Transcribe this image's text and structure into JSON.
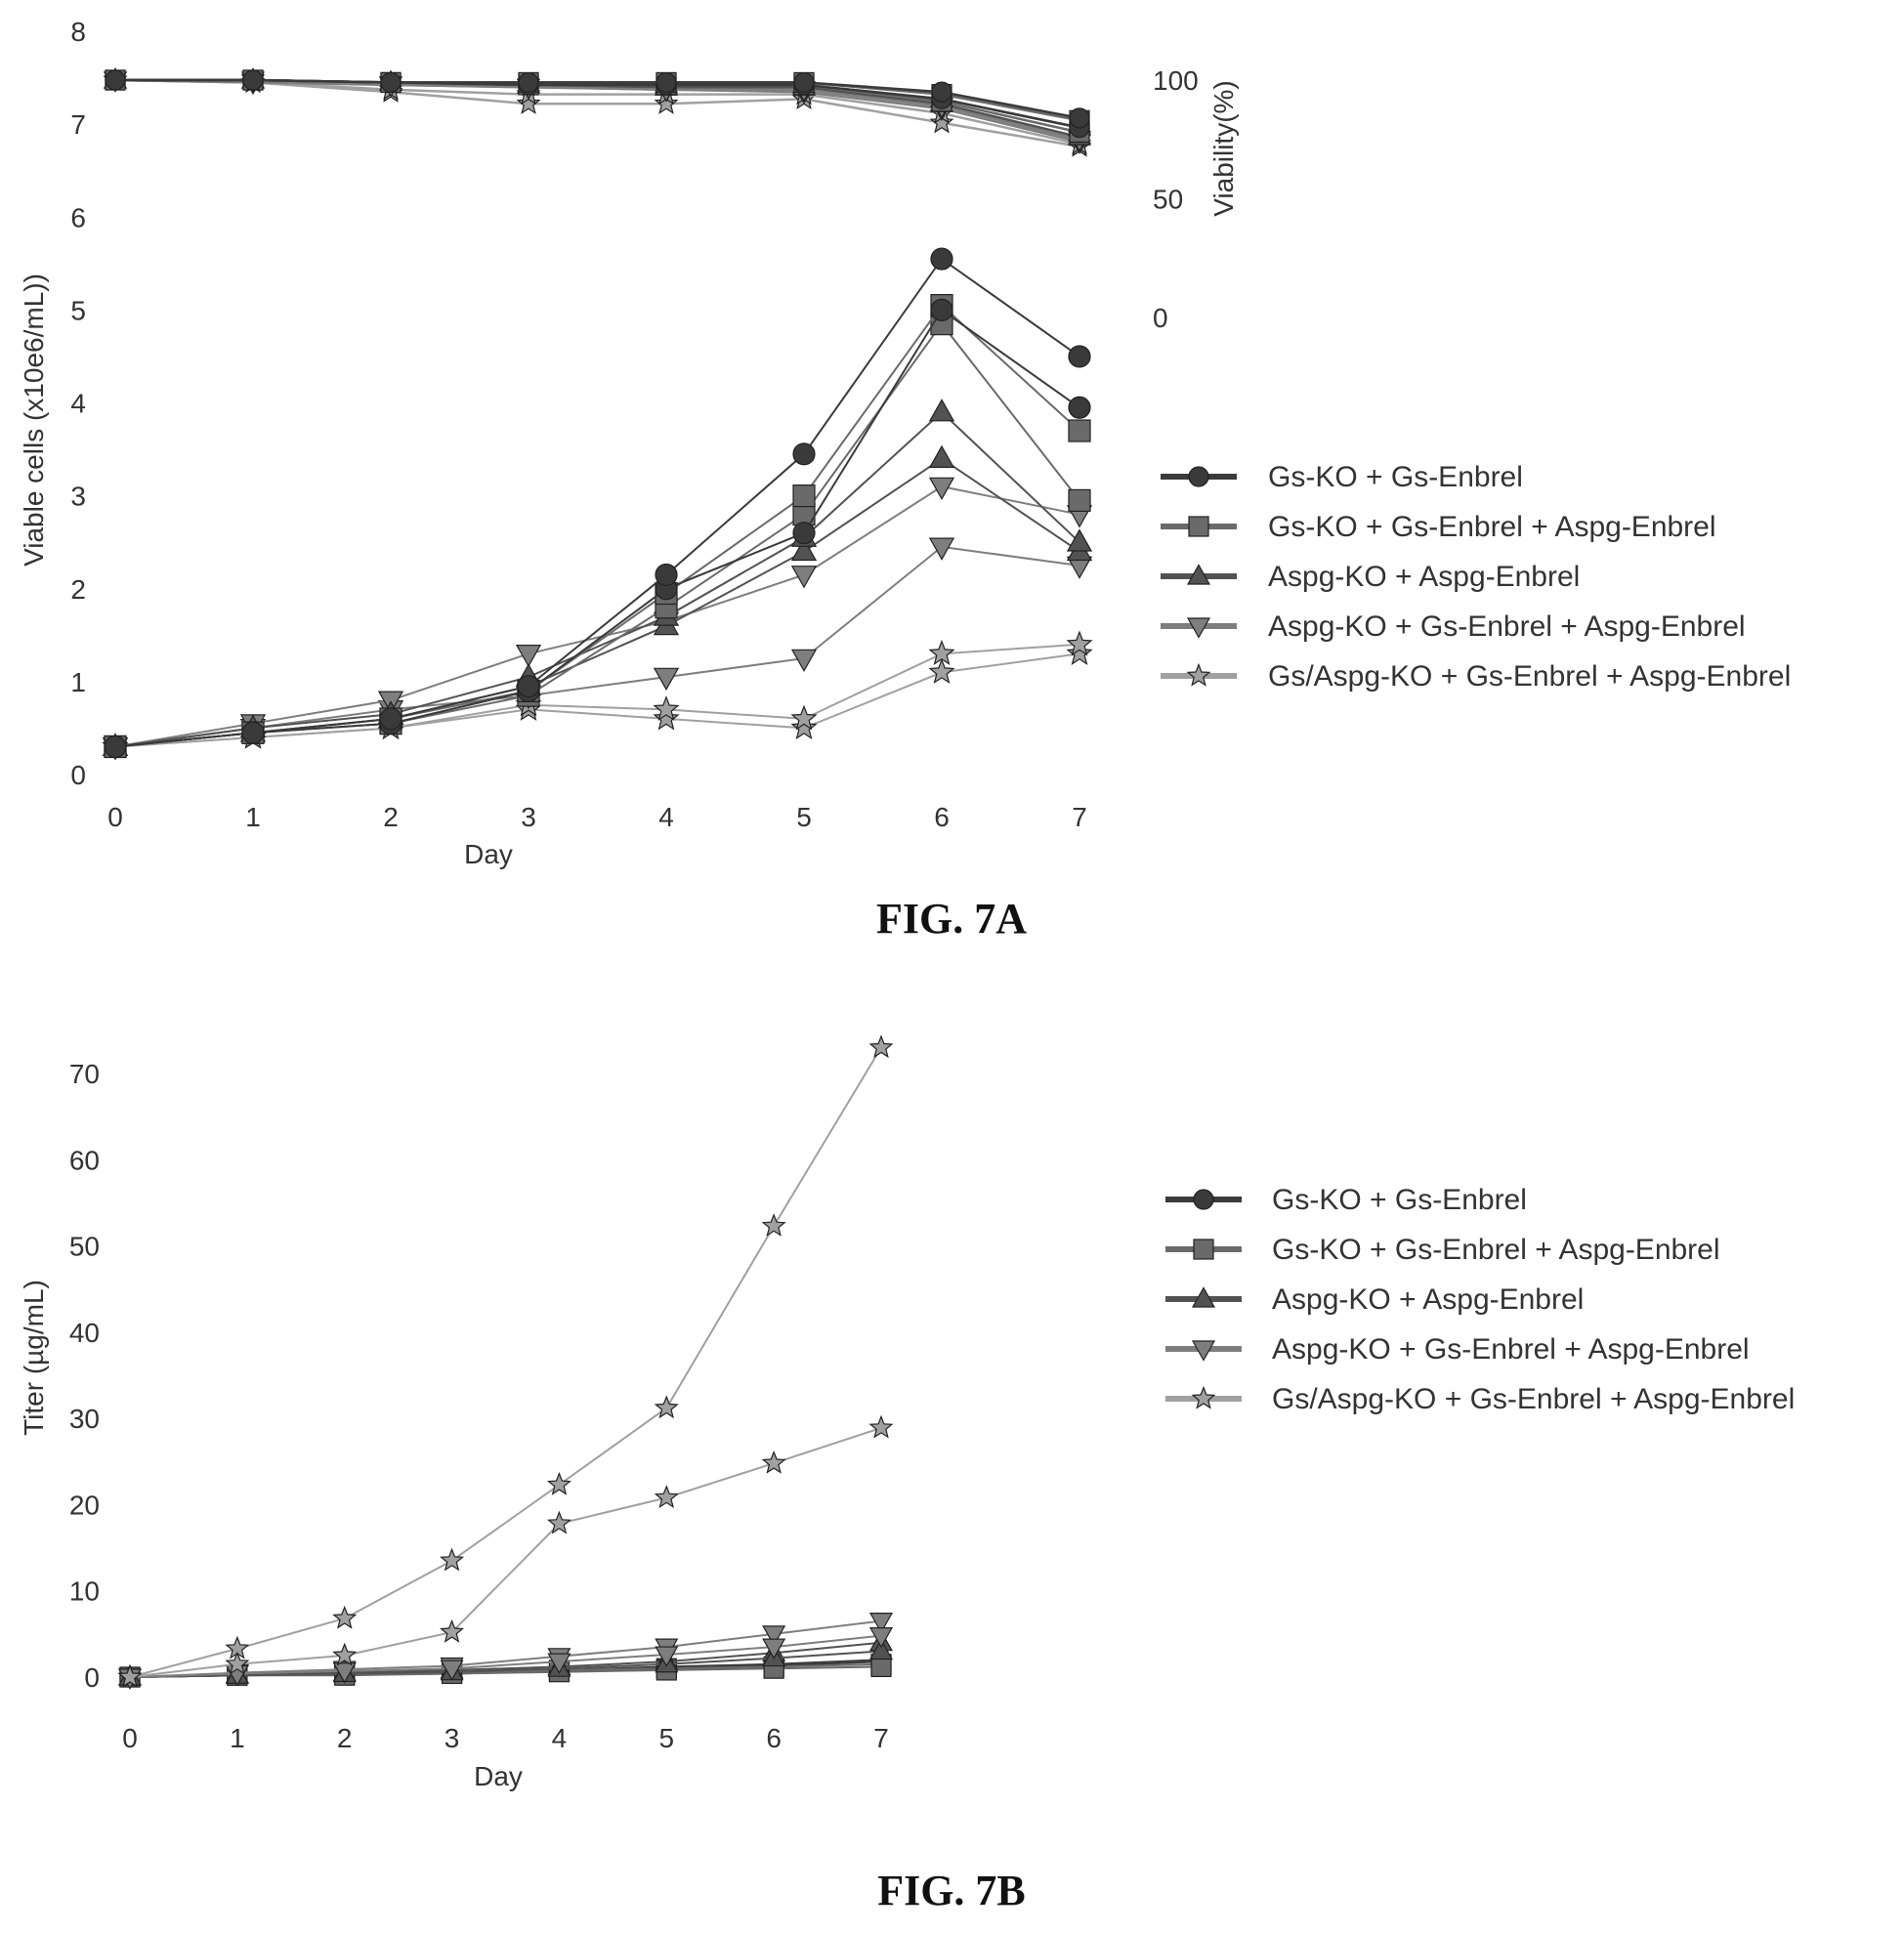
{
  "chart_data": [
    {
      "type": "line",
      "title": "FIG. 7A",
      "xlabel": "Day",
      "ylabel": "Viable cells (x10e6/mL))",
      "y2label": "Viability(%)",
      "x": [
        0,
        1,
        2,
        3,
        4,
        5,
        6,
        7
      ],
      "xlim": [
        0,
        7
      ],
      "ylim": [
        0,
        8
      ],
      "yticks": [
        0,
        1,
        2,
        3,
        4,
        5,
        6,
        7,
        8
      ],
      "y2ticks": [
        0,
        50,
        100
      ],
      "y2lim": [
        -40,
        150
      ],
      "grid": false,
      "legend_position": "right",
      "legend": [
        {
          "name": "Gs-KO + Gs-Enbrel",
          "marker": "circle",
          "color": "#3a3a3a"
        },
        {
          "name": "Gs-KO + Gs-Enbrel + Aspg-Enbrel",
          "marker": "square",
          "color": "#6a6a6a"
        },
        {
          "name": "Aspg-KO + Aspg-Enbrel",
          "marker": "triangle-up",
          "color": "#525252"
        },
        {
          "name": "Aspg-KO + Gs-Enbrel + Aspg-Enbrel",
          "marker": "triangle-down",
          "color": "#7e7e7e"
        },
        {
          "name": "Gs/Aspg-KO + Gs-Enbrel + Aspg-Enbrel",
          "marker": "star",
          "color": "#a0a0a0"
        }
      ],
      "series": [
        {
          "group": "Gs-KO + Gs-Enbrel",
          "marker": "circle",
          "color": "#3a3a3a",
          "values": [
            0.3,
            0.45,
            0.6,
            0.95,
            2.15,
            3.45,
            5.55,
            4.5
          ]
        },
        {
          "group": "Gs-KO + Gs-Enbrel",
          "marker": "circle",
          "color": "#3a3a3a",
          "values": [
            0.3,
            0.45,
            0.55,
            0.9,
            2.0,
            2.6,
            5.0,
            3.95
          ]
        },
        {
          "group": "Gs-KO + Gs-Enbrel + Aspg-Enbrel",
          "marker": "square",
          "color": "#6a6a6a",
          "values": [
            0.3,
            0.45,
            0.6,
            0.9,
            1.95,
            3.0,
            5.05,
            3.7
          ]
        },
        {
          "group": "Gs-KO + Gs-Enbrel + Aspg-Enbrel",
          "marker": "square",
          "color": "#6a6a6a",
          "values": [
            0.3,
            0.45,
            0.55,
            0.85,
            1.8,
            2.8,
            4.85,
            2.95
          ]
        },
        {
          "group": "Aspg-KO + Aspg-Enbrel",
          "marker": "triangle-up",
          "color": "#525252",
          "values": [
            0.3,
            0.5,
            0.65,
            1.05,
            1.7,
            2.55,
            3.9,
            2.5
          ]
        },
        {
          "group": "Aspg-KO + Aspg-Enbrel",
          "marker": "triangle-up",
          "color": "#525252",
          "values": [
            0.3,
            0.45,
            0.6,
            0.95,
            1.6,
            2.4,
            3.4,
            2.4
          ]
        },
        {
          "group": "Aspg-KO + Gs-Enbrel + Aspg-Enbrel",
          "marker": "triangle-down",
          "color": "#7e7e7e",
          "values": [
            0.3,
            0.55,
            0.8,
            1.3,
            1.65,
            2.15,
            3.1,
            2.8
          ]
        },
        {
          "group": "Aspg-KO + Gs-Enbrel + Aspg-Enbrel",
          "marker": "triangle-down",
          "color": "#7e7e7e",
          "values": [
            0.3,
            0.5,
            0.7,
            0.85,
            1.05,
            1.25,
            2.45,
            2.25
          ]
        },
        {
          "group": "Gs/Aspg-KO + Gs-Enbrel + Aspg-Enbrel",
          "marker": "star",
          "color": "#a0a0a0",
          "values": [
            0.3,
            0.4,
            0.5,
            0.75,
            0.7,
            0.6,
            1.3,
            1.4
          ]
        },
        {
          "group": "Gs/Aspg-KO + Gs-Enbrel + Aspg-Enbrel",
          "marker": "star",
          "color": "#a0a0a0",
          "values": [
            0.3,
            0.4,
            0.5,
            0.7,
            0.6,
            0.5,
            1.1,
            1.3
          ]
        }
      ],
      "viability_series": [
        {
          "group": "Gs-KO + Gs-Enbrel",
          "marker": "circle",
          "color": "#3a3a3a",
          "values": [
            100,
            100,
            99,
            99,
            99,
            99,
            95,
            84
          ]
        },
        {
          "group": "Gs-KO + Gs-Enbrel",
          "marker": "circle",
          "color": "#3a3a3a",
          "values": [
            100,
            100,
            99,
            98,
            98,
            98,
            92,
            80
          ]
        },
        {
          "group": "Gs-KO + Gs-Enbrel + Aspg-Enbrel",
          "marker": "square",
          "color": "#6a6a6a",
          "values": [
            100,
            100,
            99,
            99,
            99,
            99,
            94,
            83
          ]
        },
        {
          "group": "Gs-KO + Gs-Enbrel + Aspg-Enbrel",
          "marker": "square",
          "color": "#6a6a6a",
          "values": [
            100,
            100,
            99,
            98,
            98,
            98,
            91,
            78
          ]
        },
        {
          "group": "Aspg-KO + Aspg-Enbrel",
          "marker": "triangle-up",
          "color": "#525252",
          "values": [
            100,
            100,
            99,
            98,
            98,
            98,
            92,
            80
          ]
        },
        {
          "group": "Aspg-KO + Aspg-Enbrel",
          "marker": "triangle-up",
          "color": "#525252",
          "values": [
            100,
            100,
            99,
            98,
            97,
            97,
            90,
            76
          ]
        },
        {
          "group": "Aspg-KO + Gs-Enbrel + Aspg-Enbrel",
          "marker": "triangle-down",
          "color": "#7e7e7e",
          "values": [
            100,
            100,
            98,
            97,
            96,
            96,
            89,
            75
          ]
        },
        {
          "group": "Aspg-KO + Gs-Enbrel + Aspg-Enbrel",
          "marker": "triangle-down",
          "color": "#7e7e7e",
          "values": [
            100,
            99,
            98,
            97,
            96,
            95,
            88,
            74
          ]
        },
        {
          "group": "Gs/Aspg-KO + Gs-Enbrel + Aspg-Enbrel",
          "marker": "star",
          "color": "#a0a0a0",
          "values": [
            100,
            99,
            96,
            94,
            94,
            94,
            86,
            73
          ]
        },
        {
          "group": "Gs/Aspg-KO + Gs-Enbrel + Aspg-Enbrel",
          "marker": "star",
          "color": "#a0a0a0",
          "values": [
            100,
            99,
            95,
            90,
            90,
            92,
            82,
            72
          ]
        }
      ]
    },
    {
      "type": "line",
      "title": "FIG. 7B",
      "xlabel": "Day",
      "ylabel": "Titer (µg/mL)",
      "x": [
        0,
        1,
        2,
        3,
        4,
        5,
        6,
        7
      ],
      "xlim": [
        0,
        7
      ],
      "ylim": [
        0,
        75
      ],
      "yticks": [
        0,
        10,
        20,
        30,
        40,
        50,
        60,
        70
      ],
      "grid": false,
      "legend_position": "right",
      "legend": [
        {
          "name": "Gs-KO + Gs-Enbrel",
          "marker": "circle",
          "color": "#3a3a3a"
        },
        {
          "name": "Gs-KO + Gs-Enbrel + Aspg-Enbrel",
          "marker": "square",
          "color": "#6a6a6a"
        },
        {
          "name": "Aspg-KO + Aspg-Enbrel",
          "marker": "triangle-up",
          "color": "#525252"
        },
        {
          "name": "Aspg-KO + Gs-Enbrel + Aspg-Enbrel",
          "marker": "triangle-down",
          "color": "#7e7e7e"
        },
        {
          "name": "Gs/Aspg-KO + Gs-Enbrel + Aspg-Enbrel",
          "marker": "star",
          "color": "#a0a0a0"
        }
      ],
      "series": [
        {
          "group": "Gs-KO + Gs-Enbrel",
          "marker": "circle",
          "color": "#3a3a3a",
          "values": [
            0,
            0.2,
            0.3,
            0.5,
            0.8,
            1.2,
            1.5,
            2.0
          ]
        },
        {
          "group": "Gs-KO + Gs-Enbrel",
          "marker": "circle",
          "color": "#3a3a3a",
          "values": [
            0,
            0.2,
            0.3,
            0.4,
            0.7,
            1.0,
            1.3,
            1.8
          ]
        },
        {
          "group": "Gs-KO + Gs-Enbrel + Aspg-Enbrel",
          "marker": "square",
          "color": "#6a6a6a",
          "values": [
            0,
            0.2,
            0.3,
            0.5,
            0.8,
            1.0,
            1.2,
            1.5
          ]
        },
        {
          "group": "Gs-KO + Gs-Enbrel + Aspg-Enbrel",
          "marker": "square",
          "color": "#6a6a6a",
          "values": [
            0,
            0.2,
            0.2,
            0.4,
            0.6,
            0.8,
            1.0,
            1.2
          ]
        },
        {
          "group": "Aspg-KO + Aspg-Enbrel",
          "marker": "triangle-up",
          "color": "#525252",
          "values": [
            0,
            0.3,
            0.5,
            0.8,
            1.2,
            1.8,
            2.8,
            4.0
          ]
        },
        {
          "group": "Aspg-KO + Aspg-Enbrel",
          "marker": "triangle-up",
          "color": "#525252",
          "values": [
            0,
            0.2,
            0.4,
            0.6,
            1.0,
            1.5,
            2.2,
            3.0
          ]
        },
        {
          "group": "Aspg-KO + Gs-Enbrel + Aspg-Enbrel",
          "marker": "triangle-down",
          "color": "#7e7e7e",
          "values": [
            0,
            0.5,
            0.9,
            1.3,
            2.4,
            3.5,
            5.0,
            6.5
          ]
        },
        {
          "group": "Aspg-KO + Gs-Enbrel + Aspg-Enbrel",
          "marker": "triangle-down",
          "color": "#7e7e7e",
          "values": [
            0,
            0.4,
            0.7,
            1.0,
            1.8,
            2.6,
            3.5,
            4.8
          ]
        },
        {
          "group": "Gs/Aspg-KO + Gs-Enbrel + Aspg-Enbrel",
          "marker": "star",
          "color": "#a0a0a0",
          "values": [
            0,
            3.3,
            6.8,
            13.5,
            22.3,
            31.2,
            52.3,
            73.0
          ]
        },
        {
          "group": "Gs/Aspg-KO + Gs-Enbrel + Aspg-Enbrel",
          "marker": "star",
          "color": "#a0a0a0",
          "values": [
            0,
            1.5,
            2.5,
            5.2,
            17.8,
            20.8,
            24.8,
            28.9
          ]
        }
      ]
    }
  ]
}
